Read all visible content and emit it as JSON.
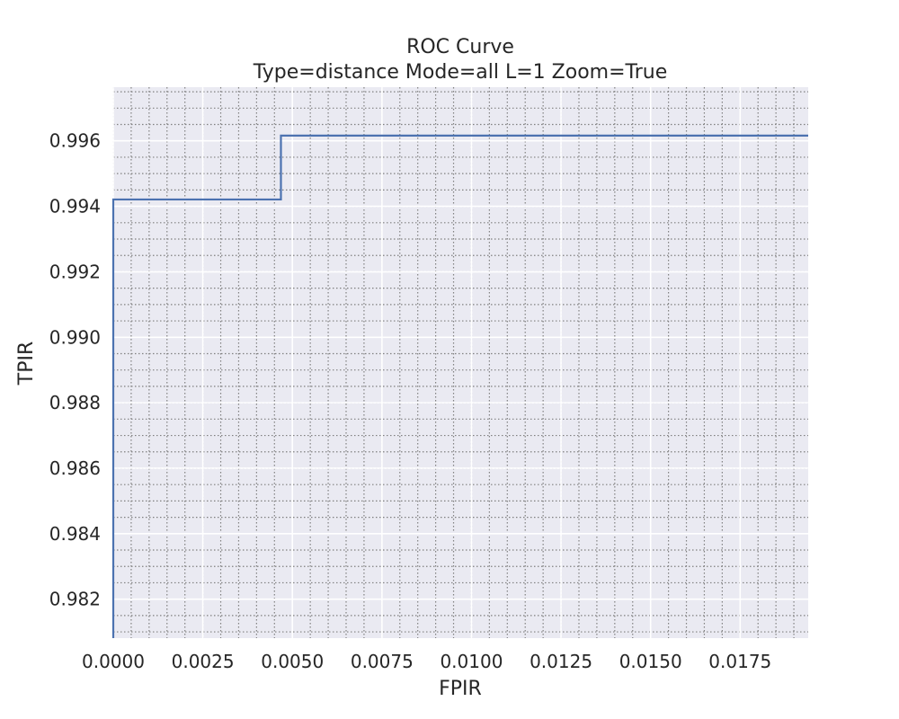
{
  "chart_data": {
    "type": "line",
    "title": "ROC Curve",
    "subtitle": "Type=distance Mode=all L=1 Zoom=True",
    "xlabel": "FPIR",
    "ylabel": "TPIR",
    "xlim": [
      0.0,
      0.0194
    ],
    "ylim": [
      0.98081,
      0.99764
    ],
    "x_ticks": [
      0.0,
      0.0025,
      0.005,
      0.0075,
      0.01,
      0.0125,
      0.015,
      0.0175
    ],
    "x_tick_labels": [
      "0.0000",
      "0.0025",
      "0.0050",
      "0.0075",
      "0.0100",
      "0.0125",
      "0.0150",
      "0.0175"
    ],
    "y_ticks": [
      0.982,
      0.984,
      0.986,
      0.988,
      0.99,
      0.992,
      0.994,
      0.996
    ],
    "y_tick_labels": [
      "0.982",
      "0.984",
      "0.986",
      "0.988",
      "0.990",
      "0.992",
      "0.994",
      "0.996"
    ],
    "x_minor_step": 0.0005,
    "y_minor_step": 0.0005,
    "grid": true,
    "series": [
      {
        "color": "#4c72b0",
        "step": true,
        "x": [
          0.0,
          0.0,
          0.00468,
          0.00468,
          0.0194
        ],
        "y": [
          0.98081,
          0.99421,
          0.99421,
          0.99616,
          0.99616
        ]
      }
    ]
  },
  "colors": {
    "plot_background": "#eaeaf2",
    "major_grid": "#ffffff",
    "minor_grid": "#808080",
    "line": "#4c72b0",
    "text": "#262626"
  }
}
